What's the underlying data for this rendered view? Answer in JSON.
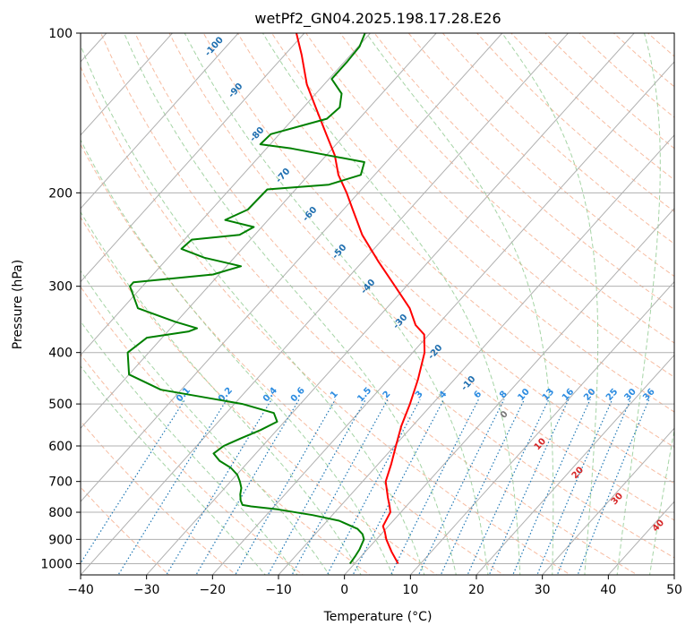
{
  "chart_data": {
    "type": "line",
    "title": "wetPf2_GN04.2025.198.17.28.E26",
    "xlabel": "Temperature (°C)",
    "ylabel": "Pressure (hPa)",
    "xlim": [
      -40,
      50
    ],
    "ylim": [
      1050,
      100
    ],
    "y_scale": "log",
    "grid": true,
    "x_ticks": [
      -40,
      -30,
      -20,
      -10,
      0,
      10,
      20,
      30,
      40,
      50
    ],
    "y_ticks": [
      100,
      200,
      300,
      400,
      500,
      600,
      700,
      800,
      900,
      1000
    ],
    "series": [
      {
        "color": "#ff0000",
        "points": [
          {
            "p": 1000,
            "t": 6.6
          },
          {
            "p": 950,
            "t": 4.0
          },
          {
            "p": 900,
            "t": 1.5
          },
          {
            "p": 870,
            "t": 0.2
          },
          {
            "p": 850,
            "t": -0.8
          },
          {
            "p": 825,
            "t": -1.2
          },
          {
            "p": 800,
            "t": -1.6
          },
          {
            "p": 780,
            "t": -2.5
          },
          {
            "p": 750,
            "t": -4.0
          },
          {
            "p": 700,
            "t": -6.5
          },
          {
            "p": 650,
            "t": -8.0
          },
          {
            "p": 600,
            "t": -9.8
          },
          {
            "p": 550,
            "t": -11.7
          },
          {
            "p": 500,
            "t": -13.4
          },
          {
            "p": 450,
            "t": -15.5
          },
          {
            "p": 400,
            "t": -18.2
          },
          {
            "p": 370,
            "t": -20.7
          },
          {
            "p": 355,
            "t": -23.3
          },
          {
            "p": 330,
            "t": -26.5
          },
          {
            "p": 300,
            "t": -31.7
          },
          {
            "p": 270,
            "t": -37.5
          },
          {
            "p": 240,
            "t": -43.7
          },
          {
            "p": 215,
            "t": -48.6
          },
          {
            "p": 200,
            "t": -51.8
          },
          {
            "p": 185,
            "t": -55.5
          },
          {
            "p": 170,
            "t": -58.7
          },
          {
            "p": 155,
            "t": -62.9
          },
          {
            "p": 140,
            "t": -67.5
          },
          {
            "p": 125,
            "t": -72.6
          },
          {
            "p": 110,
            "t": -77.4
          },
          {
            "p": 100,
            "t": -81.2
          }
        ]
      },
      {
        "color": "#008000",
        "points": [
          {
            "p": 1000,
            "t": -0.7
          },
          {
            "p": 970,
            "t": -0.9
          },
          {
            "p": 940,
            "t": -1.2
          },
          {
            "p": 900,
            "t": -1.9
          },
          {
            "p": 880,
            "t": -2.8
          },
          {
            "p": 860,
            "t": -4.3
          },
          {
            "p": 830,
            "t": -8.2
          },
          {
            "p": 810,
            "t": -13.0
          },
          {
            "p": 790,
            "t": -19.1
          },
          {
            "p": 780,
            "t": -23.5
          },
          {
            "p": 775,
            "t": -25.0
          },
          {
            "p": 760,
            "t": -25.9
          },
          {
            "p": 740,
            "t": -26.8
          },
          {
            "p": 720,
            "t": -27.5
          },
          {
            "p": 700,
            "t": -28.6
          },
          {
            "p": 680,
            "t": -29.9
          },
          {
            "p": 660,
            "t": -31.8
          },
          {
            "p": 640,
            "t": -34.5
          },
          {
            "p": 620,
            "t": -36.4
          },
          {
            "p": 600,
            "t": -35.9
          },
          {
            "p": 580,
            "t": -34.3
          },
          {
            "p": 560,
            "t": -32.5
          },
          {
            "p": 540,
            "t": -31.1
          },
          {
            "p": 520,
            "t": -32.8
          },
          {
            "p": 500,
            "t": -38.8
          },
          {
            "p": 485,
            "t": -45.8
          },
          {
            "p": 470,
            "t": -53.1
          },
          {
            "p": 440,
            "t": -60.0
          },
          {
            "p": 400,
            "t": -63.2
          },
          {
            "p": 375,
            "t": -62.3
          },
          {
            "p": 365,
            "t": -56.8
          },
          {
            "p": 360,
            "t": -56.0
          },
          {
            "p": 350,
            "t": -60.2
          },
          {
            "p": 330,
            "t": -67.7
          },
          {
            "p": 300,
            "t": -71.9
          },
          {
            "p": 295,
            "t": -71.9
          },
          {
            "p": 285,
            "t": -60.9
          },
          {
            "p": 275,
            "t": -57.8
          },
          {
            "p": 265,
            "t": -64.5
          },
          {
            "p": 255,
            "t": -69.2
          },
          {
            "p": 245,
            "t": -68.9
          },
          {
            "p": 240,
            "t": -62.3
          },
          {
            "p": 232,
            "t": -61.2
          },
          {
            "p": 225,
            "t": -66.5
          },
          {
            "p": 215,
            "t": -64.5
          },
          {
            "p": 197,
            "t": -64.3
          },
          {
            "p": 193,
            "t": -55.6
          },
          {
            "p": 185,
            "t": -52.1
          },
          {
            "p": 175,
            "t": -53.3
          },
          {
            "p": 165,
            "t": -66.2
          },
          {
            "p": 162,
            "t": -71.5
          },
          {
            "p": 155,
            "t": -71.3
          },
          {
            "p": 145,
            "t": -64.9
          },
          {
            "p": 138,
            "t": -64.5
          },
          {
            "p": 130,
            "t": -66.1
          },
          {
            "p": 122,
            "t": -69.6
          },
          {
            "p": 113,
            "t": -69.6
          },
          {
            "p": 106,
            "t": -69.8
          },
          {
            "p": 100,
            "t": -70.8
          }
        ]
      }
    ],
    "dry_adiabat_labels": [
      "-100",
      "-90",
      "-80",
      "-70",
      "-60",
      "-50",
      "-40",
      "-30",
      "-20",
      "-10"
    ],
    "moist_adiabat_labels": [
      "0",
      "10",
      "20",
      "30",
      "40"
    ],
    "mixing_ratio_labels": [
      "0.1",
      "0.2",
      "0.4",
      "0.6",
      "1",
      "1.5",
      "2",
      "3",
      "4",
      "6",
      "8",
      "10",
      "13",
      "16",
      "20",
      "25",
      "30",
      "36"
    ],
    "colors": {
      "isotherm": "#b0b0b0",
      "dry_adiabat": "#f4a582",
      "moist_adiabat": "#8fc98f",
      "mixing_ratio": "#1f77b4",
      "dry_label": "#1f6fb0",
      "moist_label": "#d62728",
      "mix_label": "#2b8be0",
      "temperature": "#ff0000",
      "dewpoint": "#008000"
    }
  }
}
